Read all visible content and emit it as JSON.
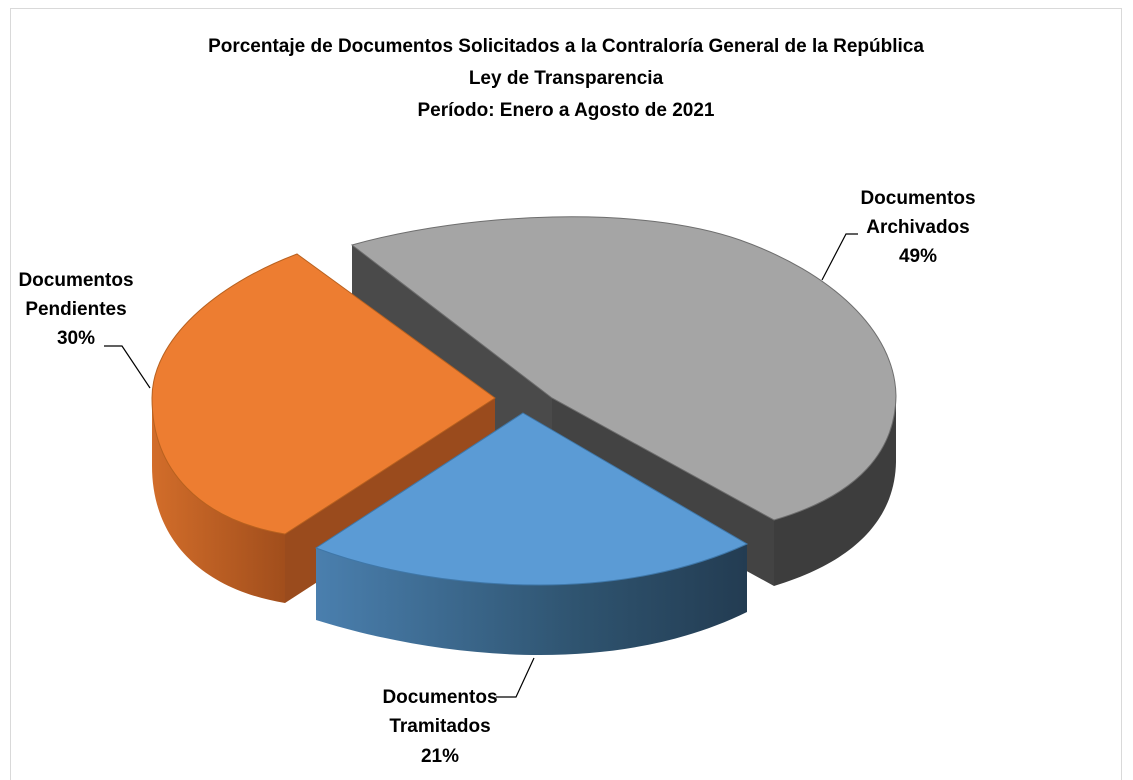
{
  "chart_data": {
    "type": "pie",
    "style": "3d-exploded",
    "title": [
      "Porcentaje de Documentos Solicitados a la Contraloría General de la República",
      "Ley de Transparencia",
      "Período: Enero a Agosto de 2021"
    ],
    "slices": [
      {
        "label_lines": [
          "Documentos",
          "Archivados"
        ],
        "value": 49,
        "value_label": "49%",
        "color": "#a5a5a5",
        "side_color": "#404040"
      },
      {
        "label_lines": [
          "Documentos",
          "Tramitados"
        ],
        "value": 21,
        "value_label": "21%",
        "color": "#5b9bd5",
        "side_color": "#2f5573"
      },
      {
        "label_lines": [
          "Documentos",
          "Pendientes"
        ],
        "value": 30,
        "value_label": "30%",
        "color": "#ed7d31",
        "side_color": "#a6521e"
      }
    ],
    "legend": "none",
    "data_labels": "outside with leader lines"
  }
}
